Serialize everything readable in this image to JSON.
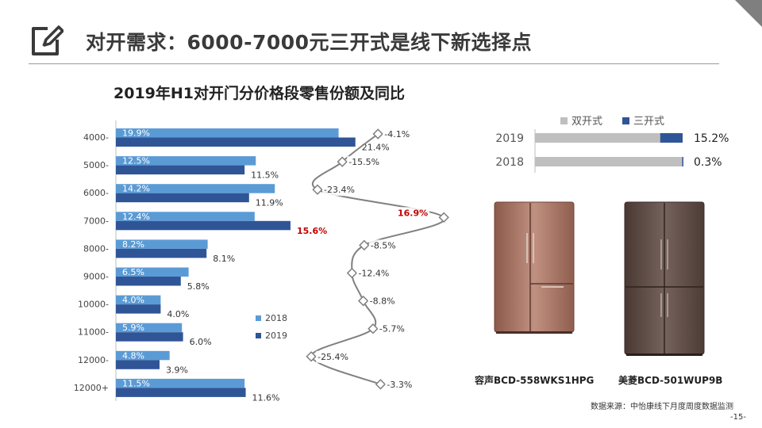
{
  "page": {
    "title": "对开需求：6000-7000元三开式是线下新选择点",
    "source": "数据来源：中怡康线下月度周度数据监测",
    "page_number": "-15-"
  },
  "chart_data": [
    {
      "type": "bar",
      "orientation": "horizontal",
      "title": "2019年H1对开门分价格段零售份额及同比",
      "categories": [
        "4000-",
        "5000-",
        "6000-",
        "7000-",
        "8000-",
        "9000-",
        "10000-",
        "11000-",
        "12000-",
        "12000+"
      ],
      "series": [
        {
          "name": "2018",
          "values": [
            19.9,
            12.5,
            14.2,
            12.4,
            8.2,
            6.5,
            4.0,
            5.9,
            4.8,
            11.5
          ],
          "color": "#5b9bd5"
        },
        {
          "name": "2019",
          "values": [
            21.4,
            11.5,
            11.9,
            15.6,
            8.1,
            5.8,
            4.0,
            6.0,
            3.9,
            11.6
          ],
          "color": "#2f5597"
        }
      ],
      "value_labels_2018": [
        "19.9%",
        "12.5%",
        "14.2%",
        "12.4%",
        "8.2%",
        "6.5%",
        "4.0%",
        "5.9%",
        "4.8%",
        "11.5%"
      ],
      "value_labels_2019": [
        "21.4%",
        "11.5%",
        "11.9%",
        "15.6%",
        "8.1%",
        "5.8%",
        "4.0%",
        "6.0%",
        "3.9%",
        "11.6%"
      ],
      "highlight_index": 3,
      "highlight_color": "#c00000",
      "xlim": [
        0,
        25
      ],
      "legend": "bottom-right",
      "grid": false
    },
    {
      "type": "line",
      "categories": [
        "4000-",
        "5000-",
        "6000-",
        "7000-",
        "8000-",
        "9000-",
        "10000-",
        "11000-",
        "12000-",
        "12000+"
      ],
      "values": [
        -4.1,
        -15.5,
        -23.4,
        16.9,
        -8.5,
        -12.4,
        -8.8,
        -5.7,
        -25.4,
        -3.3
      ],
      "labels": [
        "-4.1%",
        "-15.5%",
        "-23.4%",
        "16.9%",
        "-8.5%",
        "-12.4%",
        "-8.8%",
        "-5.7%",
        "-25.4%",
        "-3.3%"
      ],
      "highlight_index": 3,
      "highlight_color": "#c00000",
      "line_color": "#808080",
      "range": [
        -26,
        18
      ]
    },
    {
      "type": "bar",
      "orientation": "horizontal",
      "stacked": true,
      "categories": [
        "2019",
        "2018"
      ],
      "series": [
        {
          "name": "双开式",
          "values": [
            84.8,
            99.7
          ],
          "color": "#bfbfbf"
        },
        {
          "name": "三开式",
          "values": [
            15.2,
            0.3
          ],
          "color": "#2f5597"
        }
      ],
      "value_labels": [
        "15.2%",
        "0.3%"
      ],
      "legend": "top",
      "xlim": [
        0,
        100
      ]
    }
  ],
  "products": [
    {
      "caption": "容声BCD-558WKS1HPG",
      "body_color": "#a3705f",
      "accent_color": "#c29888"
    },
    {
      "caption": "美菱BCD-501WUP9B",
      "body_color": "#5e4a45",
      "accent_color": "#7b6660"
    }
  ]
}
